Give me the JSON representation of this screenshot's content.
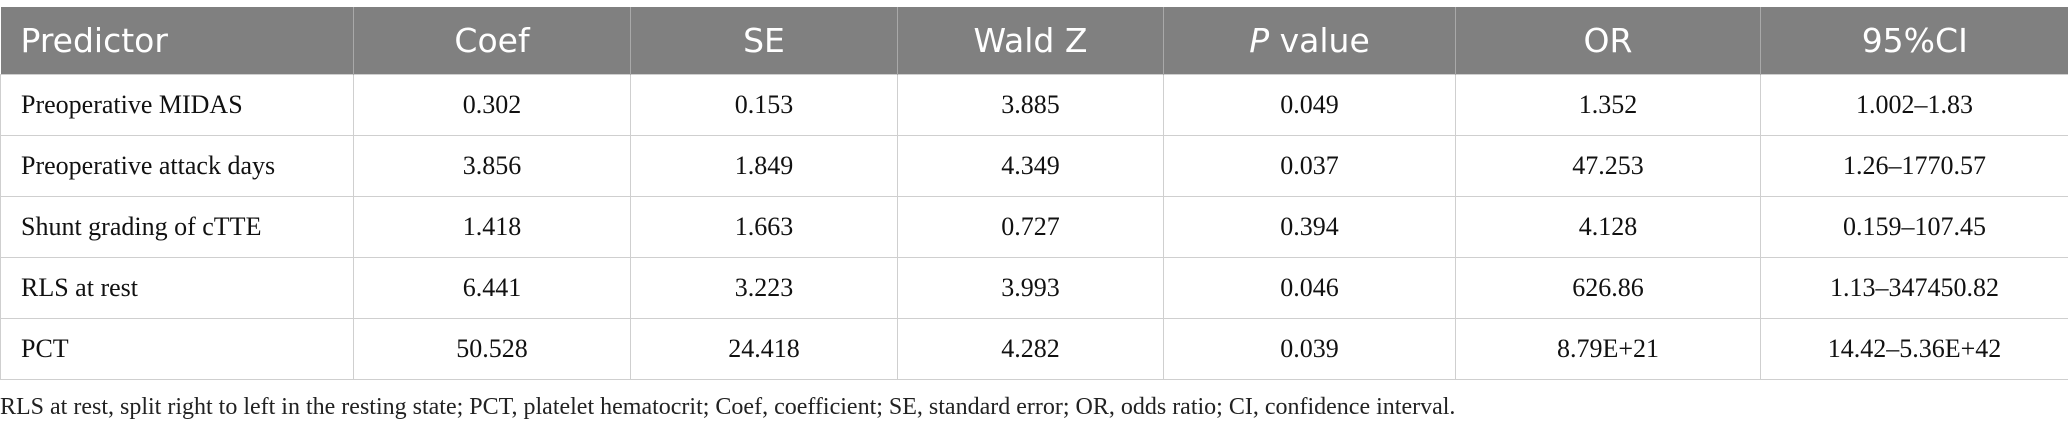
{
  "table": {
    "columns": [
      "Predictor",
      "Coef",
      "SE",
      "Wald Z",
      "P value",
      "OR",
      "95%CI"
    ],
    "rows": [
      [
        "Preoperative MIDAS",
        "0.302",
        "0.153",
        "3.885",
        "0.049",
        "1.352",
        "1.002–1.83"
      ],
      [
        "Preoperative attack days",
        "3.856",
        "1.849",
        "4.349",
        "0.037",
        "47.253",
        "1.26–1770.57"
      ],
      [
        "Shunt grading of cTTE",
        "1.418",
        "1.663",
        "0.727",
        "0.394",
        "4.128",
        "0.159–107.45"
      ],
      [
        "RLS at rest",
        "6.441",
        "3.223",
        "3.993",
        "0.046",
        "626.86",
        "1.13–347450.82"
      ],
      [
        "PCT",
        "50.528",
        "24.418",
        "4.282",
        "0.039",
        "8.79E+21",
        "14.42–5.36E+42"
      ]
    ]
  },
  "footnote": "RLS at rest, split right to left in the resting state; PCT, platelet hematocrit; Coef, coefficient; SE, standard error; OR, odds ratio; CI, confidence interval."
}
